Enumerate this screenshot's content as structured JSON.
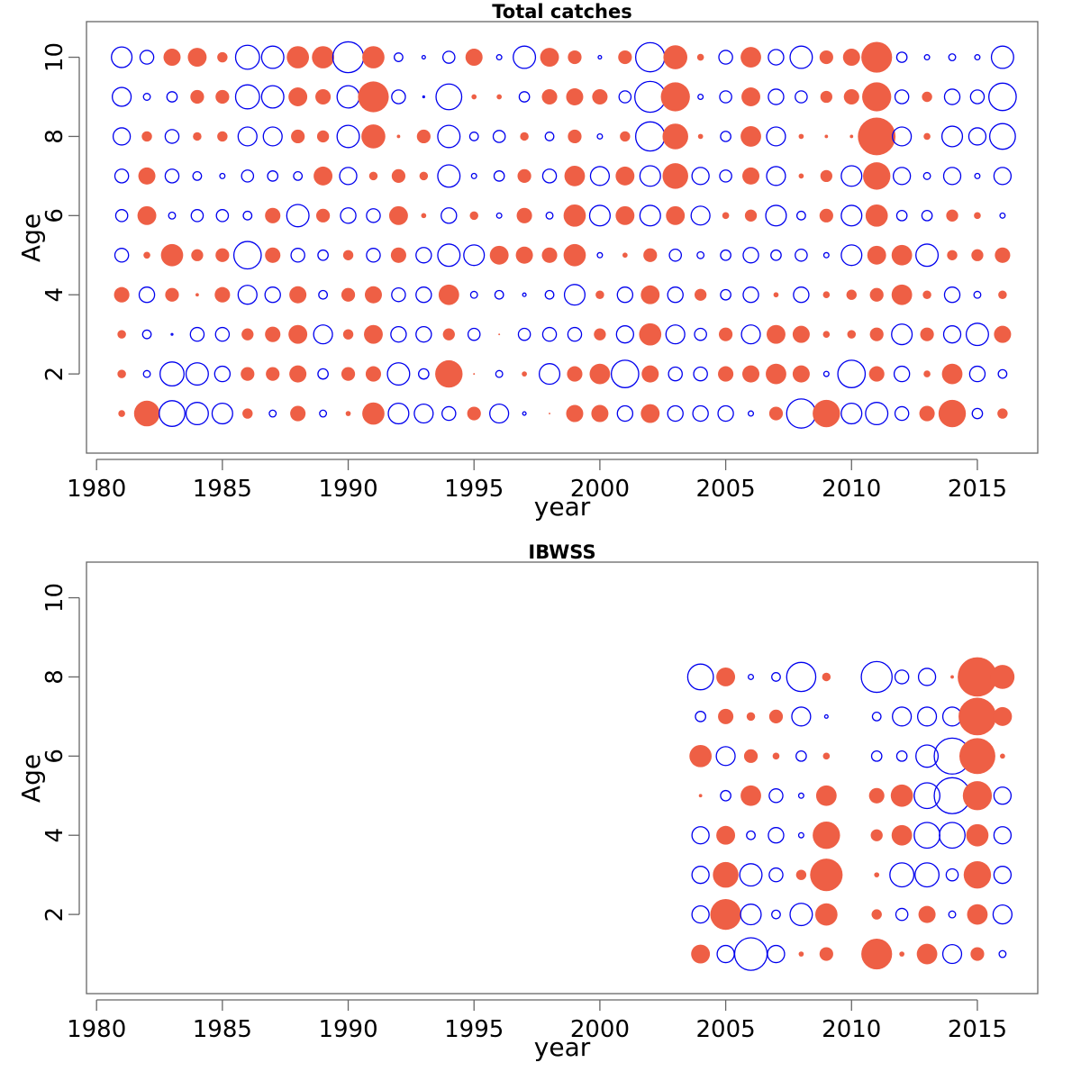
{
  "chart_data": [
    {
      "type": "scatter",
      "subtype": "bubble-residuals",
      "title": "Total catches",
      "xlabel": "year",
      "ylabel": "Age",
      "xticks": [
        1980,
        1985,
        1990,
        1995,
        2000,
        2005,
        2010,
        2015
      ],
      "yticks": [
        2,
        4,
        6,
        8,
        10
      ],
      "xlim": [
        1979.6,
        2017.4
      ],
      "ylim": [
        0,
        10.9
      ],
      "grid": false,
      "legend": "none",
      "colors": {
        "positive": "#EE5F45",
        "negative": "#0000EE"
      },
      "years": [
        1981,
        1982,
        1983,
        1984,
        1985,
        1986,
        1987,
        1988,
        1989,
        1990,
        1991,
        1992,
        1993,
        1994,
        1995,
        1996,
        1997,
        1998,
        1999,
        2000,
        2001,
        2002,
        2003,
        2004,
        2005,
        2006,
        2007,
        2008,
        2009,
        2010,
        2011,
        2012,
        2013,
        2014,
        2015,
        2016
      ],
      "ages": [
        1,
        2,
        3,
        4,
        5,
        6,
        7,
        8,
        9,
        10
      ],
      "residuals": {
        "10": [
          -12,
          -8,
          10,
          11,
          6,
          -14,
          -13,
          13,
          13,
          -18,
          13,
          -5,
          -2,
          -7,
          10,
          -3,
          -13,
          11,
          8,
          -2,
          8,
          -17,
          14,
          4,
          -8,
          12,
          -9,
          -13,
          8,
          10,
          18,
          -6,
          -3,
          -4,
          -3,
          -13
        ],
        "9": [
          -11,
          -4,
          -6,
          8,
          8,
          -14,
          -13,
          11,
          9,
          -13,
          18,
          -8,
          -1,
          -15,
          3,
          3,
          -6,
          9,
          10,
          9,
          -7,
          -18,
          17,
          -3,
          -7,
          11,
          -9,
          -7,
          7,
          9,
          17,
          -8,
          6,
          -9,
          -8,
          -16
        ],
        "8": [
          -10,
          6,
          -8,
          5,
          6,
          -11,
          -11,
          8,
          7,
          -13,
          14,
          2,
          8,
          -13,
          -5,
          -7,
          5,
          -5,
          8,
          -3,
          6,
          -17,
          15,
          3,
          -6,
          12,
          -11,
          3,
          2,
          2,
          22,
          -11,
          4,
          -12,
          -10,
          -15
        ],
        "7": [
          -8,
          10,
          -8,
          -5,
          -3,
          -7,
          -6,
          -5,
          11,
          -10,
          5,
          8,
          5,
          -13,
          -3,
          -6,
          8,
          -8,
          12,
          -11,
          11,
          -12,
          15,
          -10,
          -7,
          10,
          -11,
          3,
          7,
          -12,
          16,
          -10,
          -4,
          -10,
          -3,
          -10
        ],
        "6": [
          -7,
          11,
          -4,
          -7,
          -7,
          -5,
          9,
          -13,
          8,
          -9,
          -8,
          11,
          3,
          -9,
          5,
          -3,
          9,
          -4,
          13,
          -12,
          11,
          -12,
          11,
          -11,
          4,
          7,
          -12,
          -5,
          8,
          -12,
          13,
          -6,
          -6,
          7,
          4,
          -3
        ],
        "5": [
          -8,
          4,
          13,
          7,
          8,
          -16,
          9,
          -8,
          -6,
          6,
          -8,
          9,
          -9,
          -13,
          -12,
          11,
          10,
          9,
          13,
          -3,
          3,
          8,
          -7,
          -4,
          -6,
          -9,
          -6,
          -7,
          -3,
          -12,
          11,
          12,
          -13,
          6,
          7,
          9
        ],
        "4": [
          9,
          -9,
          8,
          2,
          9,
          -11,
          -9,
          10,
          -5,
          8,
          10,
          -8,
          -9,
          12,
          -4,
          -5,
          -2,
          -5,
          -12,
          5,
          -9,
          11,
          -9,
          7,
          -6,
          -9,
          3,
          -9,
          4,
          6,
          8,
          12,
          5,
          -9,
          -4,
          5
        ],
        "3": [
          5,
          -5,
          -1,
          -8,
          -8,
          7,
          9,
          11,
          -11,
          6,
          11,
          -9,
          -9,
          7,
          -7,
          1,
          -7,
          -8,
          -8,
          7,
          -10,
          13,
          -11,
          -7,
          8,
          -11,
          11,
          10,
          4,
          5,
          8,
          -12,
          8,
          -10,
          -13,
          10
        ],
        "2": [
          5,
          -4,
          -14,
          -13,
          -9,
          8,
          8,
          10,
          -6,
          8,
          9,
          -13,
          -6,
          16,
          1,
          -4,
          3,
          -12,
          9,
          12,
          -16,
          10,
          -8,
          -8,
          9,
          10,
          12,
          10,
          -3,
          -16,
          9,
          -9,
          4,
          12,
          -9,
          -5
        ],
        "1": [
          4,
          15,
          -15,
          -13,
          -12,
          6,
          -4,
          9,
          -4,
          3,
          13,
          -12,
          -11,
          -8,
          8,
          -11,
          -2,
          1,
          10,
          10,
          -9,
          11,
          -9,
          -9,
          -9,
          -3,
          8,
          -17,
          16,
          -12,
          -13,
          -8,
          9,
          16,
          -6,
          6
        ]
      }
    },
    {
      "type": "scatter",
      "subtype": "bubble-residuals",
      "title": "IBWSS",
      "xlabel": "year",
      "ylabel": "Age",
      "xticks": [
        1980,
        1985,
        1990,
        1995,
        2000,
        2005,
        2010,
        2015
      ],
      "yticks": [
        2,
        4,
        6,
        8,
        10
      ],
      "xlim": [
        1979.6,
        2017.4
      ],
      "ylim": [
        0,
        10.9
      ],
      "grid": false,
      "legend": "none",
      "colors": {
        "positive": "#EE5F45",
        "negative": "#0000EE"
      },
      "years": [
        2004,
        2005,
        2006,
        2007,
        2008,
        2009,
        2011,
        2012,
        2013,
        2014,
        2015,
        2016
      ],
      "ages": [
        1,
        2,
        3,
        4,
        5,
        6,
        7,
        8
      ],
      "residuals": {
        "8": [
          -15,
          11,
          -3,
          -5,
          -17,
          5,
          -18,
          -8,
          -10,
          2,
          23,
          14
        ],
        "7": [
          -6,
          9,
          5,
          8,
          -11,
          -2,
          -5,
          -11,
          -11,
          -11,
          22,
          11
        ],
        "6": [
          13,
          -11,
          8,
          4,
          -6,
          4,
          -6,
          -6,
          -13,
          -21,
          21,
          3
        ],
        "5": [
          2,
          -6,
          12,
          -8,
          -3,
          12,
          9,
          13,
          -15,
          -21,
          17,
          -10
        ],
        "4": [
          -10,
          11,
          -5,
          -9,
          -3,
          16,
          7,
          12,
          -15,
          -15,
          13,
          -10
        ],
        "3": [
          -10,
          15,
          -13,
          -8,
          6,
          19,
          3,
          -14,
          -14,
          -7,
          16,
          -10
        ],
        "2": [
          -10,
          18,
          -12,
          -5,
          -13,
          13,
          6,
          -7,
          10,
          -4,
          12,
          -11
        ],
        "1": [
          11,
          -10,
          -19,
          -10,
          3,
          8,
          18,
          3,
          12,
          -11,
          8,
          -4
        ]
      }
    }
  ]
}
